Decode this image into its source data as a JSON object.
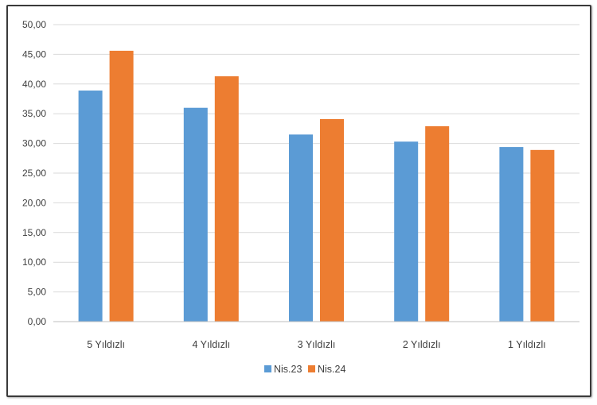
{
  "chart_data": {
    "type": "bar",
    "title": "",
    "xlabel": "",
    "ylabel": "",
    "categories": [
      "5 Yıldızlı",
      "4 Yıldızlı",
      "3 Yıldızlı",
      "2 Yıldızlı",
      "1 Yıldızlı"
    ],
    "series": [
      {
        "name": "Nis.23",
        "color": "#5b9bd5",
        "values": [
          38.9,
          36.0,
          31.5,
          30.3,
          29.4
        ]
      },
      {
        "name": "Nis.24",
        "color": "#ed7d31",
        "values": [
          45.6,
          41.3,
          34.1,
          32.9,
          28.9
        ]
      }
    ],
    "ylim": [
      0,
      50
    ],
    "yticks": [
      "0,00",
      "5,00",
      "10,00",
      "15,00",
      "20,00",
      "25,00",
      "30,00",
      "35,00",
      "40,00",
      "45,00",
      "50,00"
    ],
    "grid": true,
    "legend_position": "bottom"
  }
}
